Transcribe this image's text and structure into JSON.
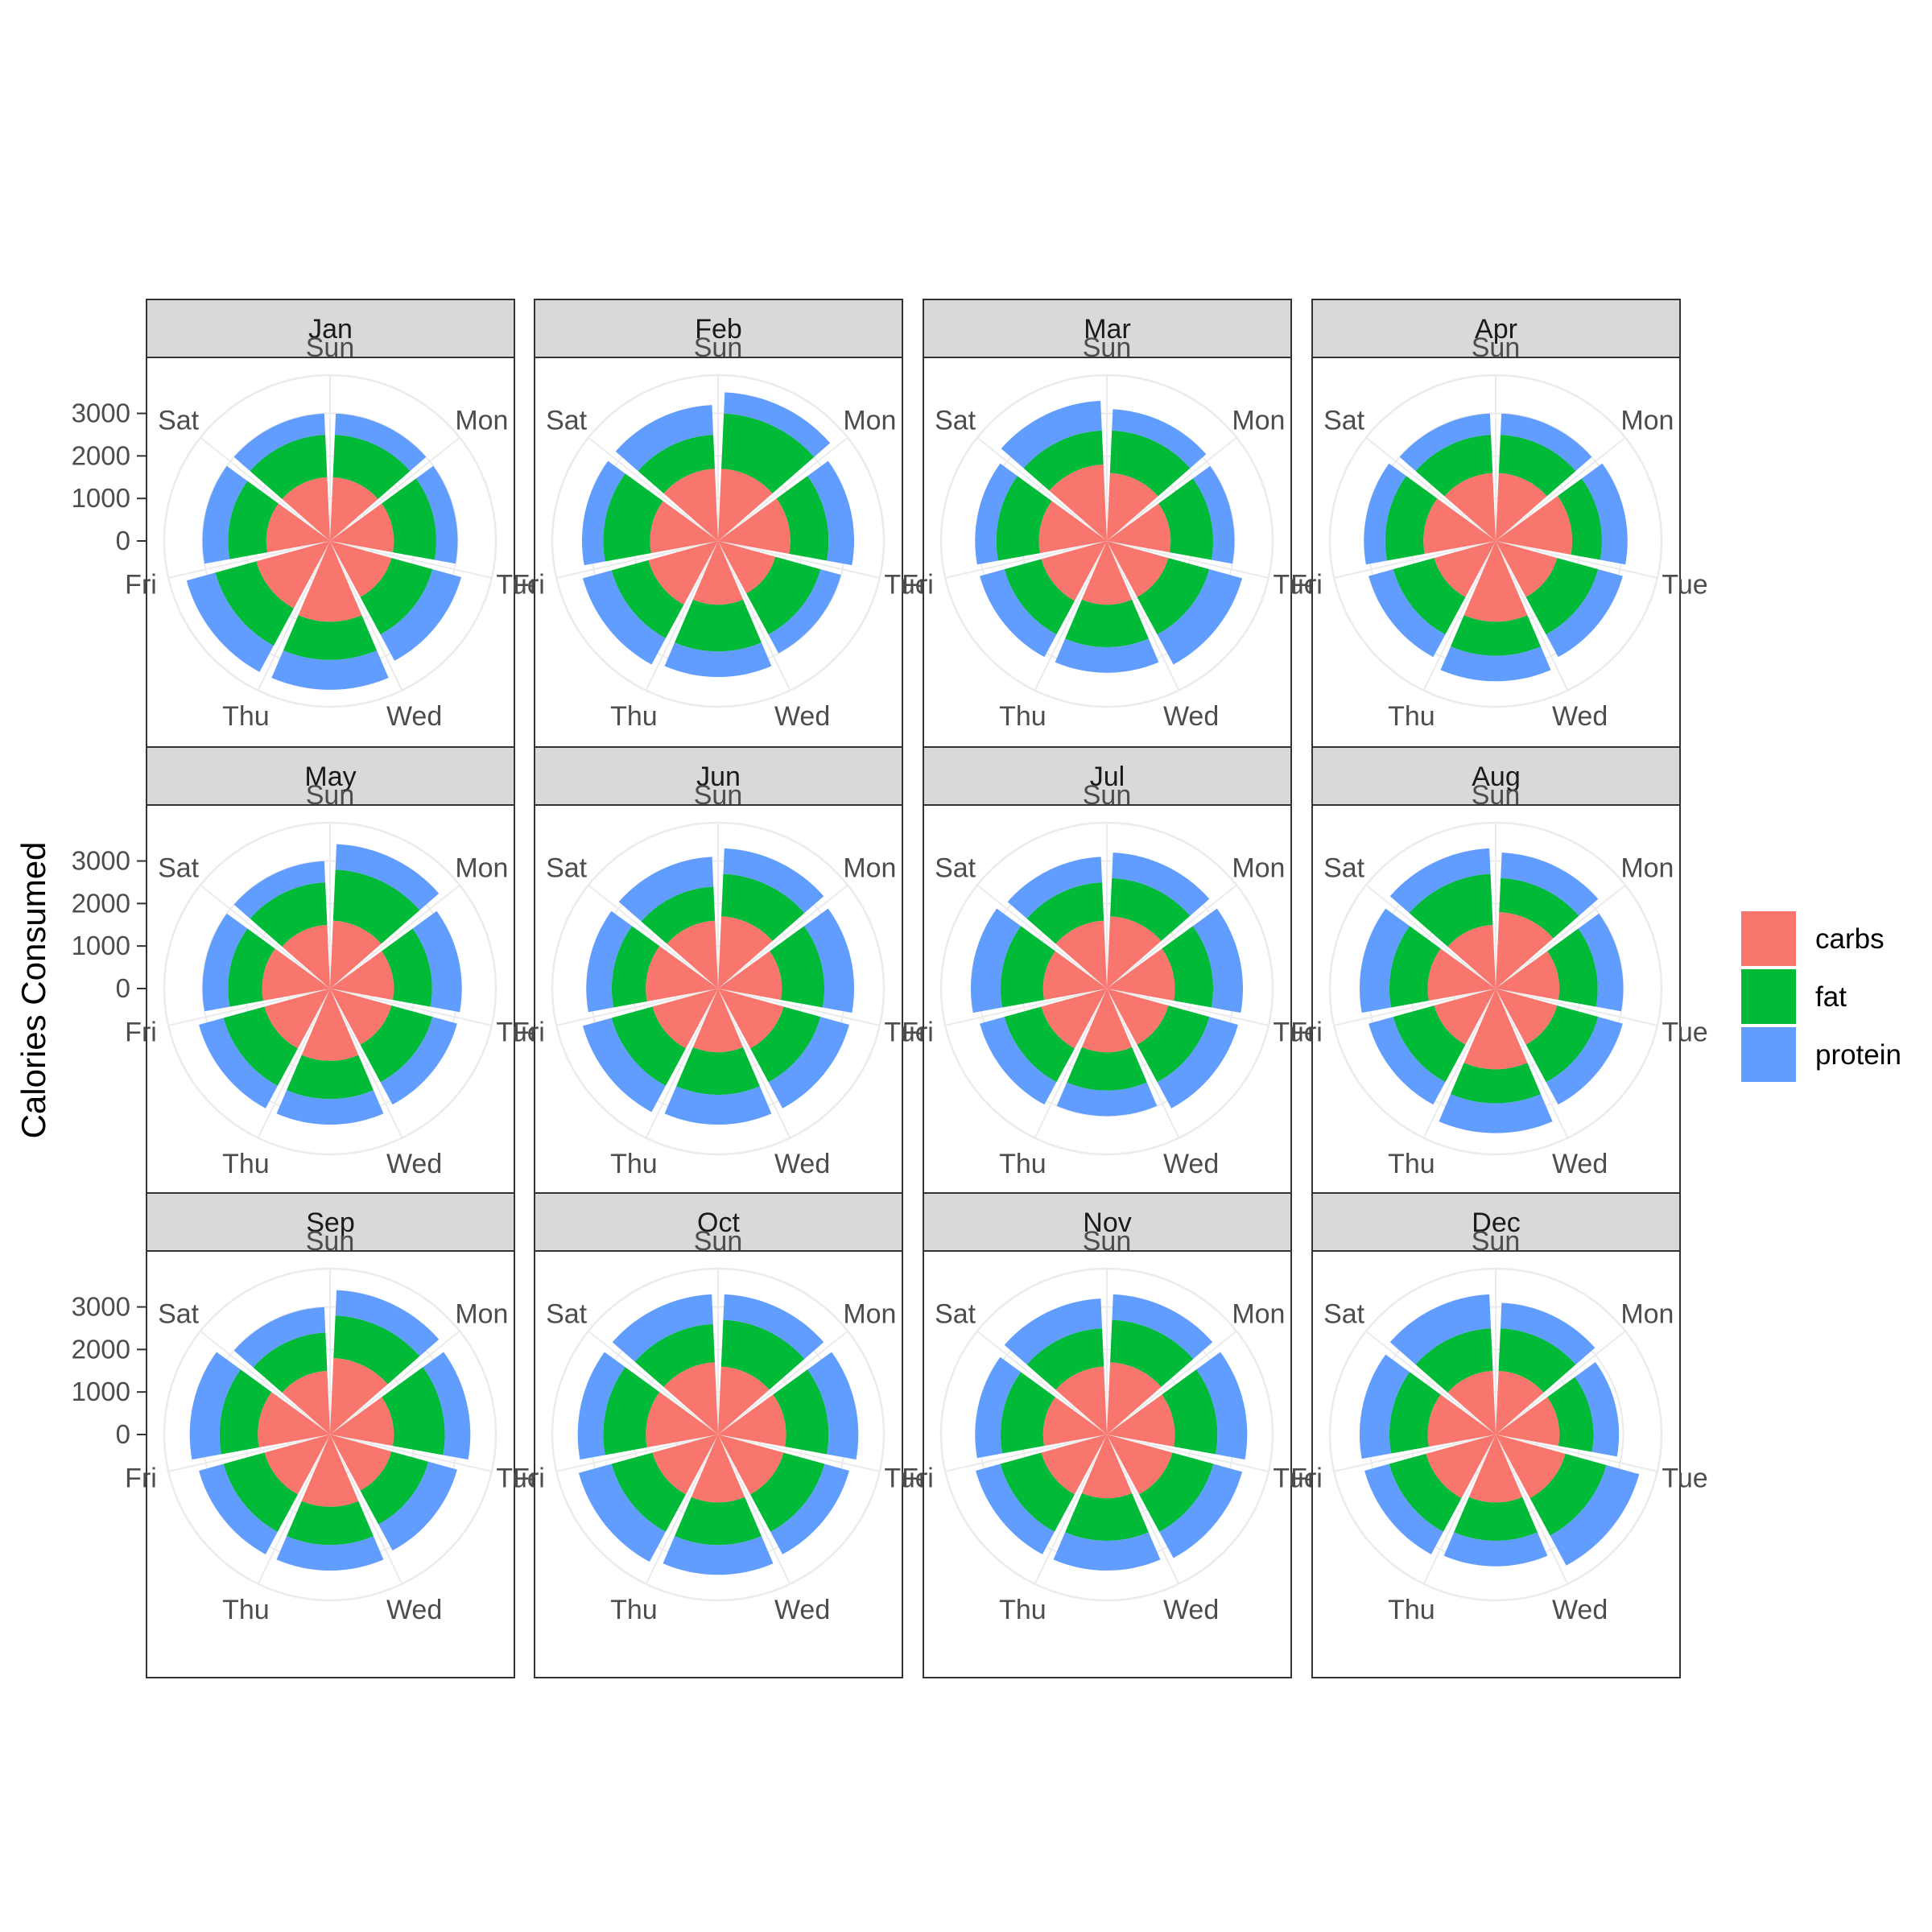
{
  "chart_data": {
    "type": "polar-stacked-bar",
    "ylabel": "Calories Consumed",
    "y_ticks": [
      0,
      1000,
      2000,
      3000
    ],
    "days": [
      "Sun",
      "Mon",
      "Tue",
      "Wed",
      "Thu",
      "Fri",
      "Sat"
    ],
    "stack_order": [
      "carbs",
      "fat",
      "protein"
    ],
    "legend": {
      "position": "right",
      "entries": [
        {
          "name": "carbs",
          "color": "#F8766D"
        },
        {
          "name": "fat",
          "color": "#00BA38"
        },
        {
          "name": "protein",
          "color": "#619CFF"
        }
      ]
    },
    "panels": [
      {
        "month": "Jan",
        "carbs": [
          1500,
          1500,
          1500,
          1900,
          1800,
          1500,
          1500
        ],
        "fat": [
          1000,
          1000,
          1000,
          900,
          1000,
          900,
          1000
        ],
        "protein": [
          500,
          500,
          700,
          700,
          700,
          600,
          500
        ]
      },
      {
        "month": "Feb",
        "carbs": [
          1700,
          1700,
          1400,
          1500,
          1700,
          1600,
          1700
        ],
        "fat": [
          1300,
          900,
          1100,
          1100,
          900,
          1100,
          800
        ],
        "protein": [
          500,
          600,
          500,
          600,
          700,
          500,
          700
        ]
      },
      {
        "month": "Mar",
        "carbs": [
          1600,
          1500,
          1500,
          1500,
          1600,
          1600,
          1800
        ],
        "fat": [
          1000,
          1000,
          1000,
          1000,
          900,
          1000,
          800
        ],
        "protein": [
          500,
          500,
          800,
          600,
          600,
          500,
          700
        ]
      },
      {
        "month": "Apr",
        "carbs": [
          1600,
          1800,
          1500,
          1900,
          1500,
          1700,
          1600
        ],
        "fat": [
          900,
          700,
          1000,
          800,
          1000,
          900,
          900
        ],
        "protein": [
          500,
          600,
          600,
          600,
          600,
          500,
          500
        ]
      },
      {
        "month": "May",
        "carbs": [
          1600,
          1500,
          1500,
          1700,
          1600,
          1600,
          1500
        ],
        "fat": [
          1200,
          900,
          1000,
          900,
          1000,
          800,
          1000
        ],
        "protein": [
          600,
          700,
          600,
          600,
          600,
          600,
          500
        ]
      },
      {
        "month": "Jun",
        "carbs": [
          1700,
          1500,
          1600,
          1500,
          1600,
          1700,
          1600
        ],
        "fat": [
          1000,
          1000,
          900,
          1000,
          1000,
          800,
          800
        ],
        "protein": [
          600,
          700,
          700,
          700,
          700,
          600,
          700
        ]
      },
      {
        "month": "Jul",
        "carbs": [
          1700,
          1600,
          1500,
          1500,
          1600,
          1500,
          1600
        ],
        "fat": [
          900,
          900,
          1000,
          900,
          900,
          1000,
          900
        ],
        "protein": [
          600,
          700,
          700,
          600,
          600,
          700,
          600
        ]
      },
      {
        "month": "Aug",
        "carbs": [
          1800,
          1500,
          1500,
          1900,
          1500,
          1600,
          1500
        ],
        "fat": [
          800,
          900,
          1000,
          800,
          1000,
          900,
          1200
        ],
        "protein": [
          600,
          600,
          600,
          700,
          600,
          700,
          600
        ]
      },
      {
        "month": "Sep",
        "carbs": [
          1800,
          1500,
          1500,
          1700,
          1600,
          1700,
          1500
        ],
        "fat": [
          1000,
          1200,
          900,
          900,
          1000,
          900,
          900
        ],
        "protein": [
          600,
          600,
          700,
          600,
          600,
          700,
          600
        ]
      },
      {
        "month": "Oct",
        "carbs": [
          1600,
          1600,
          1600,
          1600,
          1600,
          1700,
          1700
        ],
        "fat": [
          1100,
          1000,
          1000,
          1000,
          1000,
          1000,
          900
        ],
        "protein": [
          600,
          700,
          600,
          700,
          800,
          600,
          700
        ]
      },
      {
        "month": "Nov",
        "carbs": [
          1700,
          1600,
          1600,
          1500,
          1600,
          1500,
          1600
        ],
        "fat": [
          1000,
          1000,
          1000,
          1000,
          1000,
          1000,
          900
        ],
        "protein": [
          600,
          700,
          700,
          700,
          600,
          600,
          700
        ]
      },
      {
        "month": "Dec",
        "carbs": [
          1500,
          1500,
          1700,
          1600,
          1700,
          1600,
          1500
        ],
        "fat": [
          1000,
          800,
          1000,
          900,
          900,
          900,
          1000
        ],
        "protein": [
          600,
          600,
          800,
          600,
          600,
          700,
          800
        ]
      }
    ]
  }
}
